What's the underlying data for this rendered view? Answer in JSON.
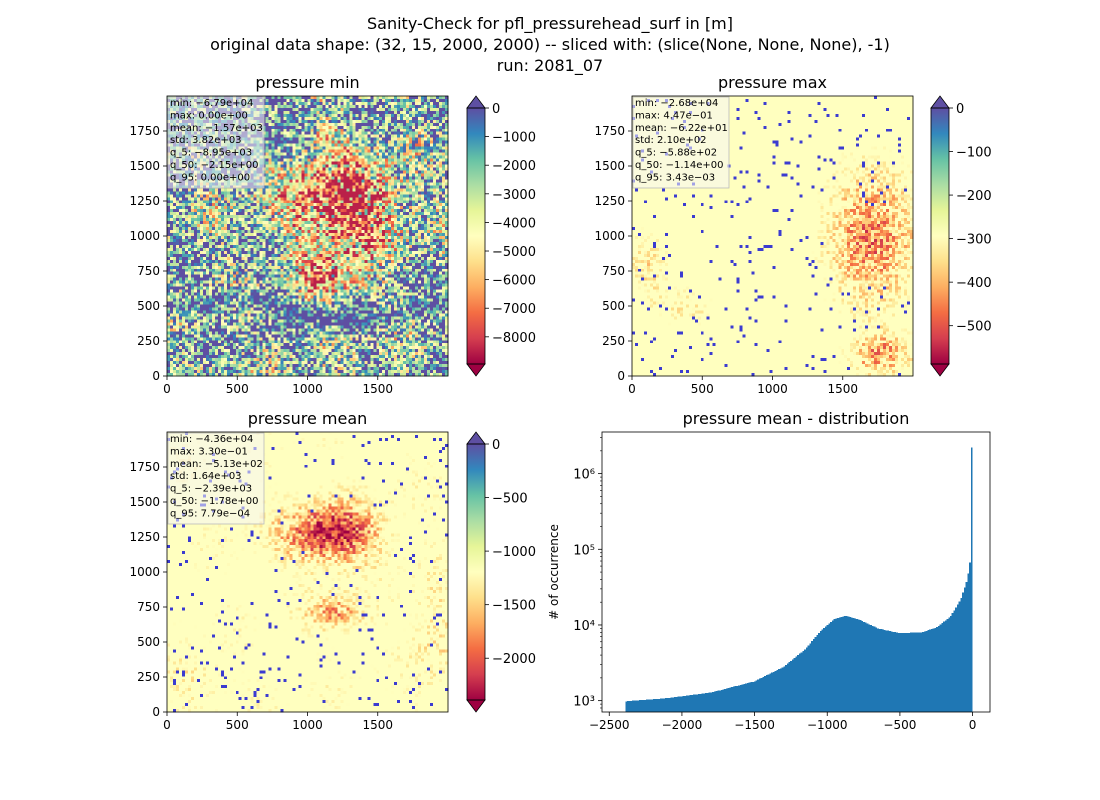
{
  "figure": {
    "suptitle_lines": [
      "Sanity-Check for pfl_pressurehead_surf in [m]",
      "original data shape: (32, 15, 2000, 2000) -- sliced with: (slice(None, None, None), -1)",
      "run: 2081_07"
    ]
  },
  "colors": {
    "spectral": [
      "#9e0142",
      "#d53e4f",
      "#f46d43",
      "#fdae61",
      "#fee08b",
      "#ffffbf",
      "#e6f598",
      "#abdda4",
      "#66c2a5",
      "#3288bd",
      "#5e4fa2"
    ],
    "hist_bar": "#1f77b4",
    "stats_box": "#f5f5f5"
  },
  "chart_data": [
    {
      "type": "heatmap",
      "title": "pressure min",
      "xlim": [
        0,
        2000
      ],
      "ylim": [
        0,
        2000
      ],
      "xticks": [
        0,
        500,
        1000,
        1500
      ],
      "yticks": [
        0,
        250,
        500,
        750,
        1000,
        1250,
        1500,
        1750
      ],
      "colorbar": {
        "min": -8950,
        "max": 0,
        "ticks": [
          0,
          -1000,
          -2000,
          -3000,
          -4000,
          -5000,
          -6000,
          -7000,
          -8000
        ],
        "extend": "both",
        "cmap": "Spectral"
      },
      "stats": [
        "min: -6.79e+04",
        "max: 0.00e+00",
        "mean: -1.57e+03",
        "std: 3.82e+03",
        "q_5: -8.95e+03",
        "q_50: -2.15e+00",
        "q_95: 0.00e+00"
      ]
    },
    {
      "type": "heatmap",
      "title": "pressure max",
      "xlim": [
        0,
        2000
      ],
      "ylim": [
        0,
        2000
      ],
      "xticks": [
        0,
        500,
        1000,
        1500
      ],
      "yticks": [
        0,
        250,
        500,
        750,
        1000,
        1250,
        1500,
        1750
      ],
      "colorbar": {
        "min": -588,
        "max": 0,
        "ticks": [
          0,
          -100,
          -200,
          -300,
          -400,
          -500
        ],
        "extend": "both",
        "cmap": "Spectral"
      },
      "stats": [
        "min: -2.68e+04",
        "max: 4.47e-01",
        "mean: -6.22e+01",
        "std: 2.10e+02",
        "q_5: -5.88e+02",
        "q_50: -1.14e+00",
        "q_95: 3.43e-03"
      ]
    },
    {
      "type": "heatmap",
      "title": "pressure mean",
      "xlim": [
        0,
        2000
      ],
      "ylim": [
        0,
        2000
      ],
      "xticks": [
        0,
        500,
        1000,
        1500
      ],
      "yticks": [
        0,
        250,
        500,
        750,
        1000,
        1250,
        1500,
        1750
      ],
      "colorbar": {
        "min": -2390,
        "max": 0,
        "ticks": [
          0,
          -500,
          -1000,
          -1500,
          -2000
        ],
        "extend": "both",
        "cmap": "Spectral"
      },
      "stats": [
        "min: -4.36e+04",
        "max: 3.30e-01",
        "mean: -5.13e+02",
        "std: 1.64e+03",
        "q_5: -2.39e+03",
        "q_50: -1.78e+00",
        "q_95: 7.79e-04"
      ]
    },
    {
      "type": "bar",
      "title": "pressure mean - distribution",
      "xlabel": "",
      "ylabel": "# of occurrence",
      "xlim": [
        -2550,
        120
      ],
      "ylim_log10": [
        2.85,
        6.55
      ],
      "yscale": "log",
      "xticks": [
        -2500,
        -2000,
        -1500,
        -1000,
        -500,
        0
      ],
      "yticks": [
        {
          "exp": 3,
          "label": "10³"
        },
        {
          "exp": 4,
          "label": "10⁴"
        },
        {
          "exp": 5,
          "label": "10⁵"
        },
        {
          "exp": 6,
          "label": "10⁶"
        }
      ],
      "bins": {
        "start": -2390,
        "end": 0
      },
      "counts_keypoints": [
        [
          -2390,
          980
        ],
        [
          -2100,
          1080
        ],
        [
          -1800,
          1280
        ],
        [
          -1500,
          1800
        ],
        [
          -1300,
          2800
        ],
        [
          -1150,
          4800
        ],
        [
          -1050,
          8200
        ],
        [
          -950,
          12000
        ],
        [
          -870,
          13200
        ],
        [
          -780,
          11800
        ],
        [
          -650,
          9000
        ],
        [
          -500,
          7800
        ],
        [
          -350,
          8000
        ],
        [
          -250,
          9200
        ],
        [
          -150,
          13000
        ],
        [
          -80,
          22000
        ],
        [
          -40,
          38000
        ],
        [
          -20,
          60000
        ],
        [
          -10,
          100000
        ],
        [
          -3,
          240000
        ],
        [
          0,
          2200000
        ]
      ]
    }
  ]
}
